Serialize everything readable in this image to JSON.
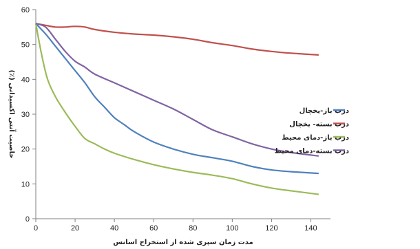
{
  "chart_data": {
    "type": "line",
    "xlabel": "مدت زمان سپری شده از استخراج اسانس",
    "ylabel": "خاصیت آنتی اکسیدانی (٪)",
    "xlim": [
      0,
      150
    ],
    "ylim": [
      0,
      60
    ],
    "xticks": [
      0,
      20,
      40,
      60,
      80,
      100,
      120,
      140
    ],
    "yticks": [
      0,
      10,
      20,
      30,
      40,
      50,
      60
    ],
    "grid": false,
    "legend_position": "right",
    "series": [
      {
        "name": "درب باز-یخچال",
        "color": "#4F81BD",
        "x": [
          0,
          5,
          10,
          15,
          20,
          25,
          30,
          35,
          40,
          45,
          50,
          60,
          70,
          80,
          90,
          100,
          110,
          120,
          130,
          144
        ],
        "y": [
          56,
          53,
          49.5,
          46,
          42.5,
          39,
          35,
          32,
          29,
          27,
          25,
          22,
          20,
          18.5,
          17.5,
          16.5,
          15,
          14,
          13.5,
          13
        ]
      },
      {
        "name": "درب بسته- یخچال",
        "color": "#C0504D",
        "x": [
          0,
          5,
          10,
          15,
          20,
          25,
          30,
          40,
          50,
          60,
          70,
          80,
          90,
          100,
          110,
          120,
          130,
          144
        ],
        "y": [
          56,
          55.5,
          55,
          55,
          55.2,
          55,
          54.3,
          53.5,
          53,
          52.7,
          52.2,
          51.5,
          50.5,
          49.7,
          48.7,
          48,
          47.5,
          47
        ]
      },
      {
        "name": "درب باز-دمای محیط",
        "color": "#9BBB59",
        "x": [
          0,
          3,
          6,
          10,
          15,
          20,
          25,
          30,
          35,
          40,
          50,
          60,
          70,
          80,
          90,
          100,
          110,
          120,
          130,
          144
        ],
        "y": [
          56,
          47,
          40,
          35,
          30.5,
          26.5,
          23,
          21.5,
          20,
          18.8,
          17,
          15.5,
          14.3,
          13.3,
          12.5,
          11.5,
          10,
          8.8,
          8,
          7
        ]
      },
      {
        "name": "درب بسته-دمای محیط",
        "color": "#8064A2",
        "x": [
          0,
          5,
          10,
          15,
          20,
          25,
          30,
          40,
          50,
          60,
          70,
          80,
          90,
          100,
          110,
          120,
          130,
          144
        ],
        "y": [
          56,
          55,
          51.5,
          48,
          45.2,
          43.5,
          41.5,
          39,
          36.5,
          34,
          31.5,
          28.5,
          25.5,
          23.5,
          21.5,
          20,
          19,
          18
        ]
      }
    ]
  }
}
